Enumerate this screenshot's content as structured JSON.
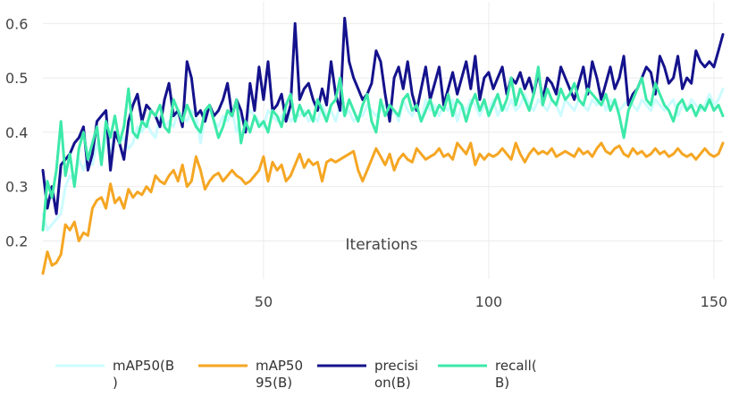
{
  "chart_data": {
    "type": "line",
    "title": "",
    "xlabel": "Iterations",
    "ylabel": "",
    "xlim": [
      1,
      152
    ],
    "ylim": [
      0.13,
      0.64
    ],
    "grid": true,
    "legend_position": "bottom",
    "x_ticks": [
      "50",
      "100",
      "150"
    ],
    "y_ticks": [
      "0.2",
      "0.3",
      "0.4",
      "0.5",
      "0.6"
    ],
    "series": [
      {
        "name": "mAP50(B\n)",
        "color": "#cdfbff",
        "values": [
          0.25,
          0.22,
          0.23,
          0.24,
          0.25,
          0.3,
          0.32,
          0.31,
          0.35,
          0.33,
          0.36,
          0.34,
          0.38,
          0.35,
          0.39,
          0.36,
          0.4,
          0.38,
          0.39,
          0.37,
          0.38,
          0.41,
          0.4,
          0.42,
          0.4,
          0.39,
          0.43,
          0.41,
          0.42,
          0.41,
          0.44,
          0.43,
          0.42,
          0.44,
          0.43,
          0.38,
          0.43,
          0.45,
          0.42,
          0.41,
          0.43,
          0.42,
          0.44,
          0.4,
          0.43,
          0.42,
          0.44,
          0.43,
          0.42,
          0.41,
          0.44,
          0.43,
          0.42,
          0.43,
          0.44,
          0.42,
          0.43,
          0.43,
          0.44,
          0.42,
          0.43,
          0.42,
          0.45,
          0.43,
          0.44,
          0.42,
          0.45,
          0.43,
          0.44,
          0.42,
          0.43,
          0.43,
          0.45,
          0.44,
          0.43,
          0.44,
          0.45,
          0.43,
          0.44,
          0.42,
          0.46,
          0.44,
          0.43,
          0.45,
          0.42,
          0.46,
          0.44,
          0.45,
          0.43,
          0.45,
          0.44,
          0.46,
          0.42,
          0.45,
          0.44,
          0.46,
          0.45,
          0.43,
          0.45,
          0.44,
          0.46,
          0.43,
          0.45,
          0.44,
          0.46,
          0.44,
          0.45,
          0.47,
          0.45,
          0.44,
          0.46,
          0.45,
          0.44,
          0.46,
          0.45,
          0.43,
          0.46,
          0.45,
          0.44,
          0.46,
          0.45,
          0.44,
          0.46,
          0.45,
          0.47,
          0.44,
          0.46,
          0.45,
          0.44,
          0.45,
          0.46,
          0.45,
          0.44,
          0.46,
          0.45,
          0.44,
          0.46,
          0.45,
          0.44,
          0.45,
          0.46,
          0.43,
          0.45,
          0.44,
          0.46,
          0.45,
          0.44,
          0.45,
          0.47,
          0.45,
          0.46,
          0.48
        ]
      },
      {
        "name": "mAP50\n95(B)",
        "color": "#f5a623",
        "values": [
          0.14,
          0.18,
          0.155,
          0.16,
          0.175,
          0.23,
          0.22,
          0.235,
          0.2,
          0.215,
          0.21,
          0.26,
          0.275,
          0.28,
          0.26,
          0.305,
          0.27,
          0.28,
          0.26,
          0.295,
          0.28,
          0.29,
          0.285,
          0.3,
          0.29,
          0.32,
          0.31,
          0.305,
          0.32,
          0.33,
          0.31,
          0.34,
          0.3,
          0.31,
          0.355,
          0.33,
          0.295,
          0.31,
          0.32,
          0.325,
          0.31,
          0.32,
          0.33,
          0.32,
          0.315,
          0.305,
          0.31,
          0.32,
          0.33,
          0.355,
          0.31,
          0.345,
          0.33,
          0.34,
          0.31,
          0.32,
          0.34,
          0.36,
          0.335,
          0.35,
          0.34,
          0.345,
          0.31,
          0.345,
          0.35,
          0.345,
          0.35,
          0.355,
          0.36,
          0.365,
          0.33,
          0.31,
          0.33,
          0.35,
          0.37,
          0.355,
          0.34,
          0.36,
          0.33,
          0.35,
          0.36,
          0.35,
          0.345,
          0.37,
          0.36,
          0.35,
          0.355,
          0.36,
          0.37,
          0.355,
          0.36,
          0.35,
          0.38,
          0.37,
          0.36,
          0.38,
          0.34,
          0.36,
          0.35,
          0.36,
          0.355,
          0.36,
          0.37,
          0.36,
          0.35,
          0.38,
          0.36,
          0.345,
          0.36,
          0.37,
          0.36,
          0.365,
          0.36,
          0.37,
          0.355,
          0.36,
          0.365,
          0.36,
          0.355,
          0.37,
          0.36,
          0.365,
          0.355,
          0.37,
          0.38,
          0.365,
          0.36,
          0.37,
          0.375,
          0.36,
          0.355,
          0.37,
          0.36,
          0.365,
          0.355,
          0.36,
          0.37,
          0.36,
          0.365,
          0.355,
          0.36,
          0.37,
          0.36,
          0.355,
          0.36,
          0.35,
          0.36,
          0.37,
          0.36,
          0.355,
          0.36,
          0.38
        ]
      },
      {
        "name": "precisi\non(B)",
        "color": "#14128c",
        "values": [
          0.33,
          0.26,
          0.3,
          0.25,
          0.34,
          0.35,
          0.36,
          0.38,
          0.39,
          0.41,
          0.33,
          0.36,
          0.42,
          0.43,
          0.44,
          0.33,
          0.4,
          0.38,
          0.35,
          0.42,
          0.45,
          0.47,
          0.42,
          0.45,
          0.44,
          0.43,
          0.41,
          0.46,
          0.49,
          0.43,
          0.44,
          0.41,
          0.53,
          0.5,
          0.43,
          0.44,
          0.42,
          0.45,
          0.43,
          0.44,
          0.46,
          0.49,
          0.43,
          0.46,
          0.44,
          0.4,
          0.49,
          0.44,
          0.52,
          0.46,
          0.53,
          0.44,
          0.45,
          0.47,
          0.42,
          0.45,
          0.6,
          0.46,
          0.48,
          0.49,
          0.46,
          0.44,
          0.48,
          0.45,
          0.53,
          0.47,
          0.44,
          0.61,
          0.53,
          0.5,
          0.48,
          0.46,
          0.47,
          0.49,
          0.55,
          0.53,
          0.47,
          0.42,
          0.5,
          0.52,
          0.48,
          0.53,
          0.47,
          0.44,
          0.48,
          0.52,
          0.46,
          0.49,
          0.52,
          0.45,
          0.48,
          0.51,
          0.47,
          0.5,
          0.53,
          0.48,
          0.54,
          0.46,
          0.5,
          0.51,
          0.48,
          0.5,
          0.52,
          0.47,
          0.5,
          0.49,
          0.51,
          0.48,
          0.5,
          0.47,
          0.51,
          0.46,
          0.5,
          0.49,
          0.47,
          0.52,
          0.5,
          0.48,
          0.46,
          0.49,
          0.52,
          0.47,
          0.53,
          0.5,
          0.46,
          0.49,
          0.52,
          0.48,
          0.5,
          0.54,
          0.45,
          0.47,
          0.48,
          0.5,
          0.52,
          0.51,
          0.47,
          0.54,
          0.52,
          0.49,
          0.5,
          0.54,
          0.48,
          0.5,
          0.49,
          0.55,
          0.53,
          0.52,
          0.53,
          0.52,
          0.55,
          0.58
        ]
      },
      {
        "name": "recall(\nB)",
        "color": "#3ce9a9",
        "values": [
          0.22,
          0.31,
          0.28,
          0.33,
          0.42,
          0.32,
          0.36,
          0.3,
          0.37,
          0.4,
          0.35,
          0.38,
          0.41,
          0.34,
          0.42,
          0.39,
          0.43,
          0.38,
          0.41,
          0.48,
          0.4,
          0.39,
          0.42,
          0.41,
          0.44,
          0.43,
          0.45,
          0.41,
          0.4,
          0.46,
          0.44,
          0.42,
          0.45,
          0.43,
          0.41,
          0.4,
          0.44,
          0.45,
          0.42,
          0.39,
          0.41,
          0.44,
          0.43,
          0.46,
          0.38,
          0.42,
          0.4,
          0.43,
          0.41,
          0.42,
          0.4,
          0.44,
          0.43,
          0.41,
          0.45,
          0.47,
          0.42,
          0.45,
          0.43,
          0.44,
          0.42,
          0.46,
          0.44,
          0.42,
          0.45,
          0.46,
          0.5,
          0.43,
          0.46,
          0.44,
          0.42,
          0.45,
          0.47,
          0.42,
          0.4,
          0.46,
          0.43,
          0.45,
          0.44,
          0.43,
          0.46,
          0.47,
          0.44,
          0.45,
          0.42,
          0.44,
          0.46,
          0.43,
          0.45,
          0.44,
          0.47,
          0.43,
          0.46,
          0.45,
          0.42,
          0.45,
          0.47,
          0.44,
          0.46,
          0.43,
          0.45,
          0.47,
          0.44,
          0.46,
          0.5,
          0.45,
          0.48,
          0.46,
          0.44,
          0.47,
          0.52,
          0.45,
          0.48,
          0.46,
          0.45,
          0.48,
          0.46,
          0.47,
          0.49,
          0.46,
          0.45,
          0.48,
          0.47,
          0.46,
          0.45,
          0.47,
          0.44,
          0.46,
          0.43,
          0.39,
          0.44,
          0.46,
          0.48,
          0.5,
          0.46,
          0.45,
          0.49,
          0.47,
          0.45,
          0.44,
          0.42,
          0.45,
          0.46,
          0.44,
          0.45,
          0.43,
          0.45,
          0.44,
          0.46,
          0.44,
          0.45,
          0.43
        ]
      }
    ]
  }
}
